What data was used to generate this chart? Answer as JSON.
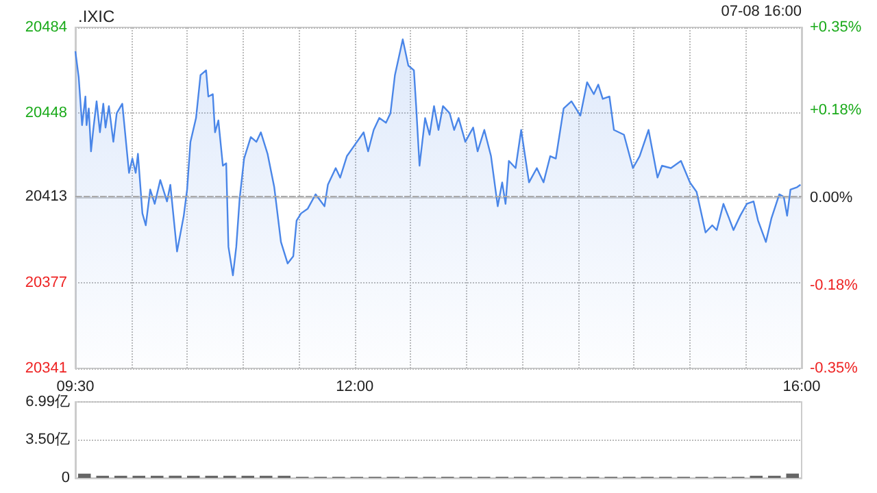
{
  "chart_data": [
    {
      "type": "area",
      "title": ".IXIC",
      "annotations": [
        "07-08 16:00"
      ],
      "color": "#4a86e8",
      "marker": "none",
      "grid": true,
      "x": [
        9.5,
        9.53,
        9.56,
        9.59,
        9.6,
        9.62,
        9.64,
        9.66,
        9.69,
        9.72,
        9.75,
        9.77,
        9.8,
        9.84,
        9.87,
        9.92,
        9.98,
        10.01,
        10.04,
        10.06,
        10.1,
        10.13,
        10.17,
        10.21,
        10.26,
        10.32,
        10.35,
        10.41,
        10.47,
        10.5,
        10.53,
        10.58,
        10.62,
        10.67,
        10.69,
        10.73,
        10.75,
        10.78,
        10.82,
        10.85,
        10.87,
        10.91,
        10.94,
        10.97,
        11.01,
        11.07,
        11.12,
        11.16,
        11.22,
        11.28,
        11.34,
        11.4,
        11.45,
        11.48,
        11.52,
        11.58,
        11.65,
        11.73,
        11.76,
        11.83,
        11.87,
        11.93,
        11.99,
        12.08,
        12.12,
        12.17,
        12.22,
        12.28,
        12.32,
        12.36,
        12.43,
        12.48,
        12.53,
        12.55,
        12.58,
        12.63,
        12.67,
        12.71,
        12.75,
        12.79,
        12.85,
        12.89,
        12.93,
        12.99,
        13.06,
        13.1,
        13.16,
        13.22,
        13.28,
        13.32,
        13.35,
        13.38,
        13.44,
        13.49,
        13.56,
        13.63,
        13.69,
        13.75,
        13.8,
        13.87,
        13.94,
        14.02,
        14.08,
        14.14,
        14.18,
        14.22,
        14.28,
        14.32,
        14.41,
        14.49,
        14.55,
        14.63,
        14.71,
        14.75,
        14.83,
        14.92,
        15.0,
        15.06,
        15.14,
        15.2,
        15.24,
        15.3,
        15.35,
        15.39,
        15.45,
        15.51,
        15.57,
        15.61,
        15.68,
        15.73,
        15.8,
        15.84,
        15.87,
        15.9,
        15.96,
        15.99
      ],
      "values": [
        20474,
        20463,
        20443,
        20455,
        20443,
        20450,
        20432,
        20441,
        20453,
        20440,
        20452,
        20442,
        20451,
        20436,
        20448,
        20452,
        20423,
        20429,
        20423,
        20431,
        20406,
        20401,
        20416,
        20410,
        20420,
        20411,
        20418,
        20390,
        20405,
        20416,
        20436,
        20446,
        20464,
        20466,
        20455,
        20456,
        20440,
        20445,
        20426,
        20427,
        20392,
        20380,
        20392,
        20412,
        20429,
        20438,
        20436,
        20440,
        20431,
        20417,
        20394,
        20385,
        20388,
        20403,
        20406,
        20408,
        20414,
        20409,
        20418,
        20425,
        20421,
        20430,
        20434,
        20440,
        20432,
        20441,
        20446,
        20444,
        20448,
        20464,
        20479,
        20468,
        20466,
        20451,
        20426,
        20446,
        20439,
        20451,
        20441,
        20451,
        20448,
        20441,
        20446,
        20436,
        20442,
        20432,
        20441,
        20430,
        20409,
        20419,
        20410,
        20428,
        20425,
        20441,
        20419,
        20425,
        20419,
        20430,
        20429,
        20450,
        20453,
        20447,
        20461,
        20456,
        20460,
        20454,
        20455,
        20441,
        20439,
        20425,
        20430,
        20441,
        20421,
        20426,
        20425,
        20428,
        20419,
        20415,
        20398,
        20401,
        20399,
        20410,
        20404,
        20399,
        20405,
        20410,
        20411,
        20403,
        20394,
        20404,
        20414,
        20413,
        20405,
        20416,
        20417,
        20418
      ],
      "xlim": [
        9.5,
        16
      ],
      "xticks": [
        {
          "value": 9.5,
          "label": "09:30"
        },
        {
          "value": 10,
          "label": null
        },
        {
          "value": 10.5,
          "label": null
        },
        {
          "value": 11,
          "label": null
        },
        {
          "value": 11.5,
          "label": null
        },
        {
          "value": 12,
          "label": "12:00"
        },
        {
          "value": 12.5,
          "label": null
        },
        {
          "value": 13,
          "label": null
        },
        {
          "value": 13.5,
          "label": null
        },
        {
          "value": 14,
          "label": null
        },
        {
          "value": 14.5,
          "label": null
        },
        {
          "value": 15,
          "label": null
        },
        {
          "value": 15.5,
          "label": null
        },
        {
          "value": 16,
          "label": "16:00"
        }
      ],
      "ylim": [
        20341,
        20484
      ],
      "yticks": [
        20341,
        20377,
        20413,
        20448,
        20484
      ],
      "y2lim": [
        -0.35,
        0.35
      ],
      "y2ticks": [
        {
          "value": -0.35,
          "label": "-0.35%"
        },
        {
          "value": -0.18,
          "label": "-0.18%"
        },
        {
          "value": 0,
          "label": "0.00%"
        },
        {
          "value": 0.18,
          "label": "+0.18%"
        },
        {
          "value": 0.35,
          "label": "+0.35%"
        }
      ],
      "ref_lines": [
        {
          "axis": "y",
          "value": 20413,
          "line_style": "dashed",
          "color": "#aaaaaa"
        }
      ]
    },
    {
      "type": "bar",
      "color": "#666666",
      "grid": "y",
      "tick_labels": "y",
      "categories": [
        null,
        null,
        null,
        null,
        null,
        null,
        null,
        null,
        null,
        null,
        null,
        null,
        null,
        null,
        null,
        null,
        null,
        null,
        null,
        null,
        null,
        null,
        null,
        null,
        null,
        null,
        null,
        null,
        null,
        null,
        null,
        null,
        null,
        null,
        null,
        null,
        null,
        null,
        null,
        null
      ],
      "values": [
        0.4,
        0.2,
        0.2,
        0.2,
        0.2,
        0.2,
        0.2,
        0.2,
        0.2,
        0.2,
        0.2,
        0.2,
        0.1,
        0.1,
        0.1,
        0.1,
        0.1,
        0.1,
        0.1,
        0.1,
        0.1,
        0.1,
        0.1,
        0.1,
        0.1,
        0.1,
        0.1,
        0.1,
        0.1,
        0.1,
        0.1,
        0.1,
        0.1,
        0.1,
        0.1,
        0.1,
        0.1,
        0.2,
        0.2,
        0.4
      ],
      "ylim": [
        0,
        6.99
      ],
      "yticks": [
        0,
        {
          "value": 3.5,
          "label": "3.50亿"
        },
        {
          "value": 6.99,
          "label": "6.99亿"
        }
      ]
    }
  ]
}
